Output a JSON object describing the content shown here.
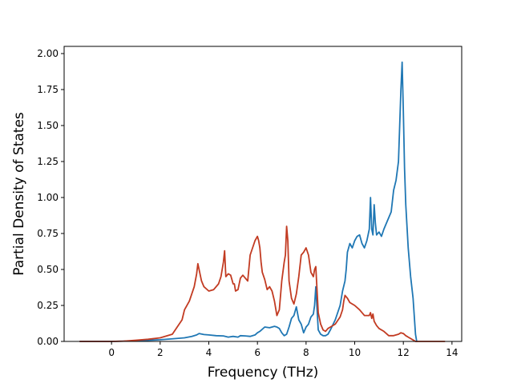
{
  "chart_data": {
    "type": "line",
    "title": "",
    "xlabel": "Frequency (THz)",
    "ylabel": "Partial Density of States",
    "xlim": [
      -1.95,
      14.4
    ],
    "ylim": [
      0,
      2.05
    ],
    "xticks": [
      0,
      2,
      4,
      6,
      8,
      10,
      12,
      14
    ],
    "xtick_labels": [
      "0",
      "2",
      "4",
      "6",
      "8",
      "10",
      "12",
      "14"
    ],
    "yticks": [
      0,
      0.25,
      0.5,
      0.75,
      1.0,
      1.25,
      1.5,
      1.75,
      2.0
    ],
    "ytick_labels": [
      "0.00",
      "0.25",
      "0.50",
      "0.75",
      "1.00",
      "1.25",
      "1.50",
      "1.75",
      "2.00"
    ],
    "grid": false,
    "legend": false,
    "series": [
      {
        "color": "#1f77b4",
        "x": [
          -1.3,
          -0.5,
          0,
          0.5,
          1.0,
          1.5,
          2.0,
          2.5,
          3.0,
          3.3,
          3.5,
          3.6,
          3.8,
          4.0,
          4.3,
          4.6,
          4.8,
          5.0,
          5.2,
          5.3,
          5.5,
          5.7,
          5.9,
          6.0,
          6.1,
          6.3,
          6.5,
          6.6,
          6.7,
          6.8,
          6.9,
          7.0,
          7.1,
          7.2,
          7.3,
          7.4,
          7.5,
          7.6,
          7.7,
          7.8,
          7.9,
          8.0,
          8.1,
          8.2,
          8.3,
          8.35,
          8.4,
          8.5,
          8.6,
          8.7,
          8.8,
          8.9,
          9.0,
          9.2,
          9.4,
          9.5,
          9.6,
          9.65,
          9.7,
          9.8,
          9.9,
          10.0,
          10.1,
          10.2,
          10.3,
          10.4,
          10.5,
          10.6,
          10.65,
          10.7,
          10.75,
          10.8,
          10.85,
          10.9,
          11.0,
          11.1,
          11.2,
          11.3,
          11.5,
          11.6,
          11.7,
          11.8,
          11.85,
          11.9,
          11.95,
          12.0,
          12.05,
          12.1,
          12.2,
          12.3,
          12.4,
          12.5,
          12.55
        ],
        "values": [
          0.0,
          0.0,
          0.0,
          0.002,
          0.004,
          0.008,
          0.012,
          0.018,
          0.025,
          0.035,
          0.045,
          0.055,
          0.048,
          0.045,
          0.04,
          0.038,
          0.03,
          0.035,
          0.03,
          0.04,
          0.038,
          0.035,
          0.045,
          0.06,
          0.07,
          0.1,
          0.095,
          0.1,
          0.105,
          0.1,
          0.09,
          0.06,
          0.04,
          0.05,
          0.1,
          0.16,
          0.18,
          0.24,
          0.15,
          0.12,
          0.06,
          0.1,
          0.12,
          0.17,
          0.19,
          0.25,
          0.38,
          0.08,
          0.05,
          0.04,
          0.04,
          0.05,
          0.08,
          0.15,
          0.25,
          0.35,
          0.42,
          0.5,
          0.62,
          0.68,
          0.65,
          0.7,
          0.73,
          0.74,
          0.68,
          0.65,
          0.7,
          0.78,
          1.0,
          0.78,
          0.74,
          0.95,
          0.82,
          0.74,
          0.76,
          0.73,
          0.78,
          0.82,
          0.9,
          1.05,
          1.12,
          1.25,
          1.5,
          1.75,
          1.94,
          1.6,
          1.2,
          0.95,
          0.65,
          0.45,
          0.3,
          0.05,
          0.0
        ]
      },
      {
        "color": "#c23b22",
        "x": [
          -1.3,
          -0.5,
          0,
          0.5,
          1.0,
          1.5,
          2.0,
          2.5,
          2.7,
          2.9,
          3.0,
          3.2,
          3.4,
          3.5,
          3.55,
          3.6,
          3.7,
          3.8,
          4.0,
          4.2,
          4.4,
          4.5,
          4.6,
          4.65,
          4.7,
          4.8,
          4.9,
          5.0,
          5.05,
          5.1,
          5.2,
          5.3,
          5.4,
          5.5,
          5.6,
          5.7,
          5.8,
          5.9,
          6.0,
          6.05,
          6.1,
          6.15,
          6.2,
          6.3,
          6.4,
          6.5,
          6.6,
          6.7,
          6.8,
          6.9,
          7.0,
          7.1,
          7.15,
          7.2,
          7.25,
          7.3,
          7.4,
          7.5,
          7.6,
          7.7,
          7.8,
          7.9,
          8.0,
          8.1,
          8.2,
          8.3,
          8.35,
          8.4,
          8.5,
          8.6,
          8.7,
          8.8,
          8.9,
          9.0,
          9.2,
          9.4,
          9.5,
          9.55,
          9.6,
          9.7,
          9.8,
          10.0,
          10.2,
          10.4,
          10.6,
          10.65,
          10.7,
          10.75,
          10.8,
          10.9,
          11.0,
          11.2,
          11.4,
          11.6,
          11.8,
          11.9,
          12.0,
          12.1,
          12.2,
          12.4,
          12.5,
          13.0,
          13.7
        ],
        "values": [
          0.0,
          0.0,
          0.0,
          0.002,
          0.008,
          0.015,
          0.025,
          0.05,
          0.1,
          0.15,
          0.22,
          0.28,
          0.38,
          0.47,
          0.54,
          0.5,
          0.42,
          0.38,
          0.35,
          0.36,
          0.4,
          0.45,
          0.55,
          0.63,
          0.45,
          0.47,
          0.46,
          0.4,
          0.4,
          0.35,
          0.36,
          0.44,
          0.46,
          0.44,
          0.42,
          0.6,
          0.65,
          0.7,
          0.73,
          0.7,
          0.65,
          0.55,
          0.48,
          0.43,
          0.36,
          0.38,
          0.35,
          0.28,
          0.18,
          0.22,
          0.42,
          0.55,
          0.6,
          0.8,
          0.7,
          0.42,
          0.3,
          0.26,
          0.33,
          0.45,
          0.6,
          0.62,
          0.65,
          0.6,
          0.48,
          0.45,
          0.5,
          0.52,
          0.2,
          0.12,
          0.08,
          0.07,
          0.09,
          0.1,
          0.12,
          0.17,
          0.22,
          0.28,
          0.32,
          0.3,
          0.27,
          0.25,
          0.22,
          0.18,
          0.18,
          0.2,
          0.16,
          0.19,
          0.14,
          0.11,
          0.09,
          0.07,
          0.04,
          0.04,
          0.05,
          0.06,
          0.055,
          0.04,
          0.03,
          0.01,
          0.0,
          0.0,
          0.0
        ]
      }
    ]
  }
}
